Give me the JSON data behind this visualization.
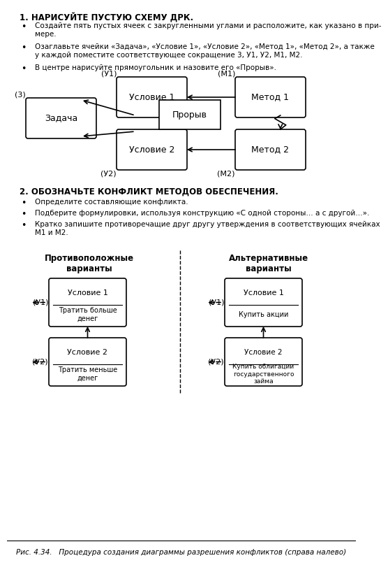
{
  "bg_color": "#ffffff",
  "text_color": "#000000",
  "section1_title": "1. НАРИСУЙТЕ ПУСТУЮ СХЕМУ ДРК.",
  "section1_bullets": [
    "Создайте пять пустых ячеек с закругленными углами и расположите, как указано в при-\nмере.",
    "Озаглавьте ячейки «Задача», «Условие 1», «Условие 2», «Метод 1», «Метод 2», а также\nу каждой поместите соответствующее сокращение 3, У1, У2, М1, М2.",
    "В центре нарисуйте прямоугольник и назовите его «Прорыв»."
  ],
  "section2_title": "2. ОБОЗНАЧЬТЕ КОНФЛИКТ МЕТОДОВ ОБЕСПЕЧЕНИЯ.",
  "section2_bullets": [
    "Определите составляющие конфликта.",
    "Подберите формулировки, используя конструкцию «С одной стороны… а с другой…».",
    "Кратко запишите противоречащие друг другу утверждения в соответствующих ячейках\nМ1 и М2."
  ],
  "caption": "Рис. 4.34.   Процедура создания диаграммы разрешения конфликтов (справа налево)"
}
